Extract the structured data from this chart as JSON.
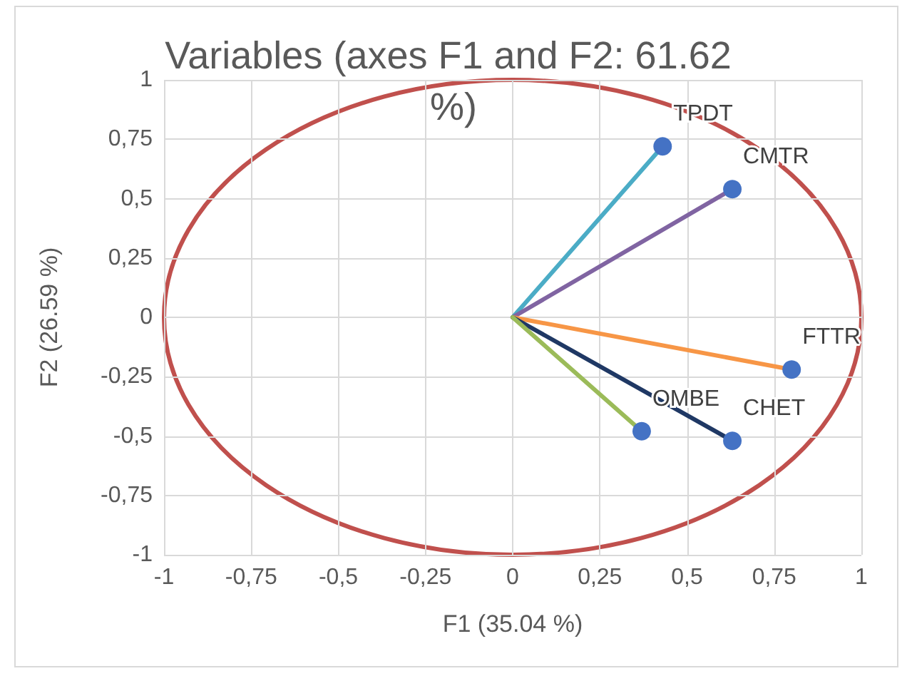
{
  "chart_data": {
    "type": "scatter",
    "title": "Variables (axes F1 and F2: 61.62 %)",
    "xlabel": "F1 (35.04 %)",
    "ylabel": "F2 (26.59 %)",
    "xlim": [
      -1,
      1
    ],
    "ylim": [
      -1,
      1
    ],
    "xticks": [
      -1,
      {
        "value": -0.75,
        "label": "-0,75"
      },
      {
        "value": -0.5,
        "label": "-0,5"
      },
      {
        "value": -0.25,
        "label": "-0,25"
      },
      0,
      {
        "value": 0.25,
        "label": "0,25"
      },
      {
        "value": 0.5,
        "label": "0,5"
      },
      {
        "value": 0.75,
        "label": "0,75"
      },
      1
    ],
    "yticks": [
      -1,
      {
        "value": -0.75,
        "label": "-0,75"
      },
      {
        "value": -0.5,
        "label": "-0,5"
      },
      {
        "value": -0.25,
        "label": "-0,25"
      },
      0,
      {
        "value": 0.25,
        "label": "0,25"
      },
      {
        "value": 0.5,
        "label": "0,5"
      },
      {
        "value": 0.75,
        "label": "0,75"
      },
      1
    ],
    "grid": true,
    "series": [
      {
        "type": "line",
        "marker": "none",
        "color": "#4bacc6",
        "x": [
          0,
          0.43
        ],
        "values": [
          0,
          0.72
        ]
      },
      {
        "type": "line",
        "marker": "none",
        "color": "#8064a2",
        "x": [
          0,
          0.63
        ],
        "values": [
          0,
          0.54
        ]
      },
      {
        "type": "line",
        "marker": "none",
        "color": "#f79646",
        "x": [
          0,
          0.8
        ],
        "values": [
          0,
          -0.22
        ]
      },
      {
        "type": "line",
        "marker": "none",
        "color": "#1f3864",
        "x": [
          0,
          0.63
        ],
        "values": [
          0,
          -0.52
        ]
      },
      {
        "type": "line",
        "marker": "none",
        "color": "#9bbb59",
        "x": [
          0,
          0.37
        ],
        "values": [
          0,
          -0.48
        ]
      },
      {
        "type": "scatter",
        "marker": "circle",
        "color": "#4472c4",
        "x": [
          0.43,
          0.63,
          0.8,
          0.63,
          0.37
        ],
        "values": [
          0.72,
          0.54,
          -0.22,
          -0.52,
          -0.48
        ],
        "value_labels": [
          "TPDT",
          "CMTR",
          "FTTR",
          "CHET",
          "OMBE"
        ]
      }
    ]
  }
}
